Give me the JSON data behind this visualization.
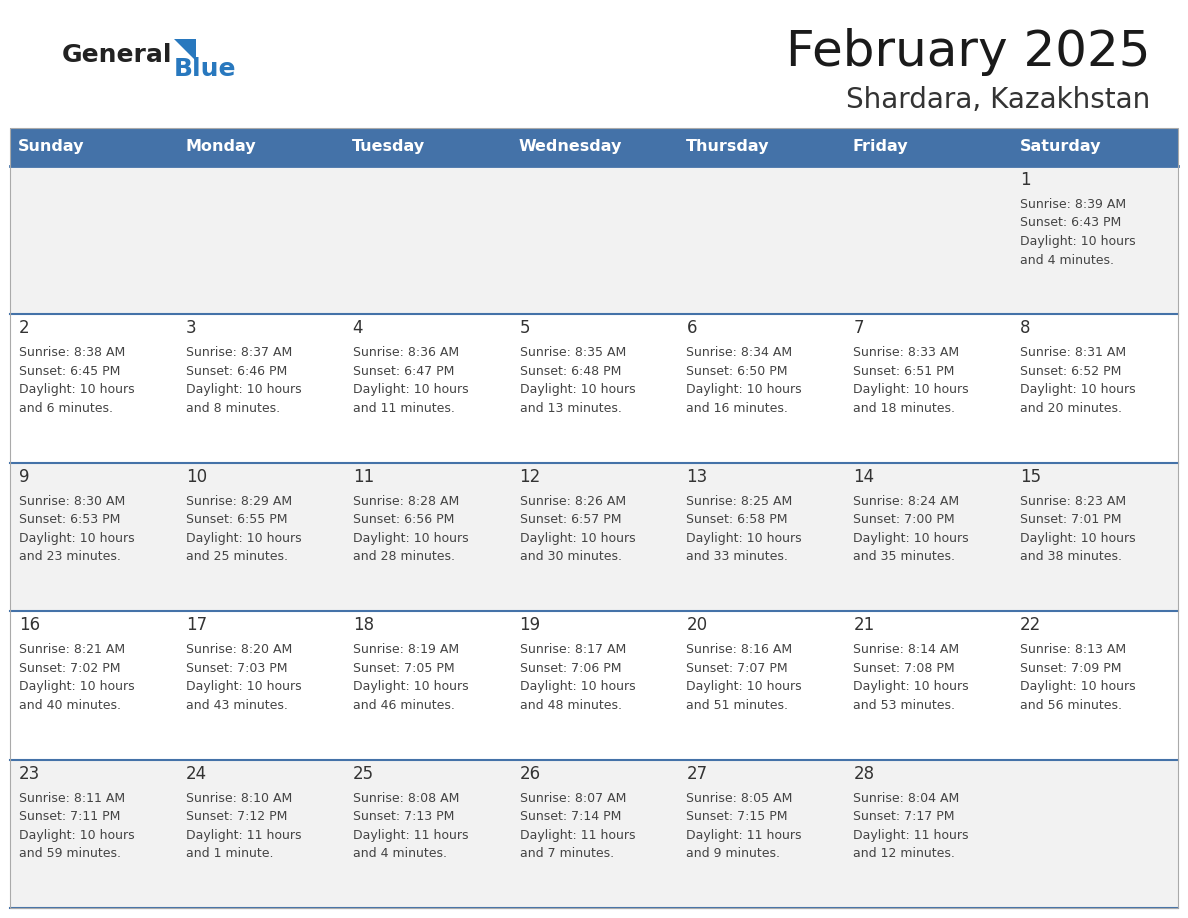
{
  "title": "February 2025",
  "subtitle": "Shardara, Kazakhstan",
  "days_of_week": [
    "Sunday",
    "Monday",
    "Tuesday",
    "Wednesday",
    "Thursday",
    "Friday",
    "Saturday"
  ],
  "header_bg": "#4472A8",
  "header_text": "#FFFFFF",
  "cell_bg_odd": "#F2F2F2",
  "cell_bg_even": "#FFFFFF",
  "divider_color": "#4472A8",
  "text_color": "#444444",
  "day_num_color": "#333333",
  "logo_general_color": "#222222",
  "logo_blue_color": "#2878BE",
  "calendar_data": [
    [
      null,
      null,
      null,
      null,
      null,
      null,
      {
        "day": 1,
        "sunrise": "8:39 AM",
        "sunset": "6:43 PM",
        "daylight": "10 hours and 4 minutes."
      }
    ],
    [
      {
        "day": 2,
        "sunrise": "8:38 AM",
        "sunset": "6:45 PM",
        "daylight": "10 hours and 6 minutes."
      },
      {
        "day": 3,
        "sunrise": "8:37 AM",
        "sunset": "6:46 PM",
        "daylight": "10 hours and 8 minutes."
      },
      {
        "day": 4,
        "sunrise": "8:36 AM",
        "sunset": "6:47 PM",
        "daylight": "10 hours and 11 minutes."
      },
      {
        "day": 5,
        "sunrise": "8:35 AM",
        "sunset": "6:48 PM",
        "daylight": "10 hours and 13 minutes."
      },
      {
        "day": 6,
        "sunrise": "8:34 AM",
        "sunset": "6:50 PM",
        "daylight": "10 hours and 16 minutes."
      },
      {
        "day": 7,
        "sunrise": "8:33 AM",
        "sunset": "6:51 PM",
        "daylight": "10 hours and 18 minutes."
      },
      {
        "day": 8,
        "sunrise": "8:31 AM",
        "sunset": "6:52 PM",
        "daylight": "10 hours and 20 minutes."
      }
    ],
    [
      {
        "day": 9,
        "sunrise": "8:30 AM",
        "sunset": "6:53 PM",
        "daylight": "10 hours and 23 minutes."
      },
      {
        "day": 10,
        "sunrise": "8:29 AM",
        "sunset": "6:55 PM",
        "daylight": "10 hours and 25 minutes."
      },
      {
        "day": 11,
        "sunrise": "8:28 AM",
        "sunset": "6:56 PM",
        "daylight": "10 hours and 28 minutes."
      },
      {
        "day": 12,
        "sunrise": "8:26 AM",
        "sunset": "6:57 PM",
        "daylight": "10 hours and 30 minutes."
      },
      {
        "day": 13,
        "sunrise": "8:25 AM",
        "sunset": "6:58 PM",
        "daylight": "10 hours and 33 minutes."
      },
      {
        "day": 14,
        "sunrise": "8:24 AM",
        "sunset": "7:00 PM",
        "daylight": "10 hours and 35 minutes."
      },
      {
        "day": 15,
        "sunrise": "8:23 AM",
        "sunset": "7:01 PM",
        "daylight": "10 hours and 38 minutes."
      }
    ],
    [
      {
        "day": 16,
        "sunrise": "8:21 AM",
        "sunset": "7:02 PM",
        "daylight": "10 hours and 40 minutes."
      },
      {
        "day": 17,
        "sunrise": "8:20 AM",
        "sunset": "7:03 PM",
        "daylight": "10 hours and 43 minutes."
      },
      {
        "day": 18,
        "sunrise": "8:19 AM",
        "sunset": "7:05 PM",
        "daylight": "10 hours and 46 minutes."
      },
      {
        "day": 19,
        "sunrise": "8:17 AM",
        "sunset": "7:06 PM",
        "daylight": "10 hours and 48 minutes."
      },
      {
        "day": 20,
        "sunrise": "8:16 AM",
        "sunset": "7:07 PM",
        "daylight": "10 hours and 51 minutes."
      },
      {
        "day": 21,
        "sunrise": "8:14 AM",
        "sunset": "7:08 PM",
        "daylight": "10 hours and 53 minutes."
      },
      {
        "day": 22,
        "sunrise": "8:13 AM",
        "sunset": "7:09 PM",
        "daylight": "10 hours and 56 minutes."
      }
    ],
    [
      {
        "day": 23,
        "sunrise": "8:11 AM",
        "sunset": "7:11 PM",
        "daylight": "10 hours and 59 minutes."
      },
      {
        "day": 24,
        "sunrise": "8:10 AM",
        "sunset": "7:12 PM",
        "daylight": "11 hours and 1 minute."
      },
      {
        "day": 25,
        "sunrise": "8:08 AM",
        "sunset": "7:13 PM",
        "daylight": "11 hours and 4 minutes."
      },
      {
        "day": 26,
        "sunrise": "8:07 AM",
        "sunset": "7:14 PM",
        "daylight": "11 hours and 7 minutes."
      },
      {
        "day": 27,
        "sunrise": "8:05 AM",
        "sunset": "7:15 PM",
        "daylight": "11 hours and 9 minutes."
      },
      {
        "day": 28,
        "sunrise": "8:04 AM",
        "sunset": "7:17 PM",
        "daylight": "11 hours and 12 minutes."
      },
      null
    ]
  ]
}
